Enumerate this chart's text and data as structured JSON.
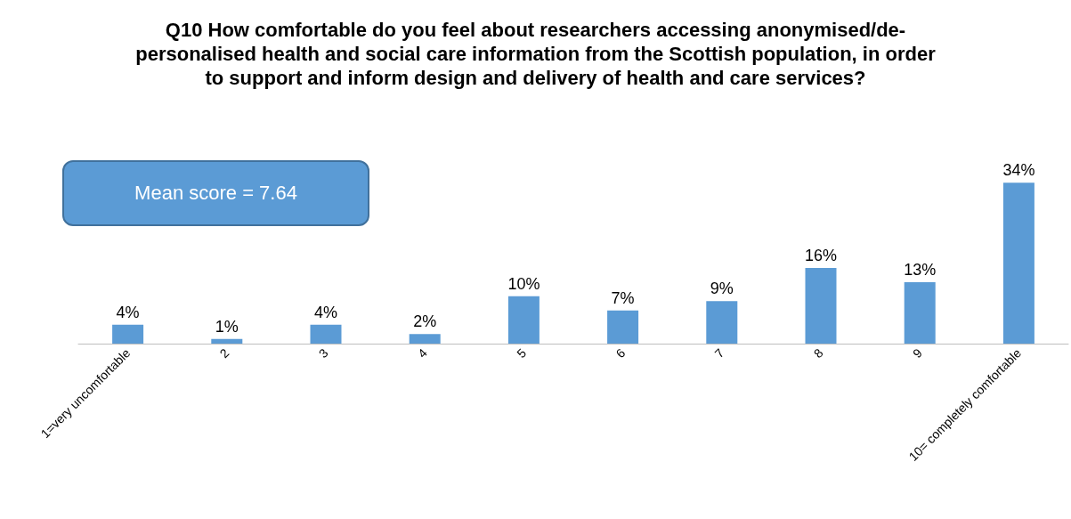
{
  "chart_data": {
    "type": "bar",
    "title": "Q10 How comfortable do you feel about researchers accessing anonymised/de-personalised health and social care information from the Scottish population, in order to support and inform design and delivery of health and care services?",
    "categories": [
      "1=very uncomfortable",
      "2",
      "3",
      "4",
      "5",
      "6",
      "7",
      "8",
      "9",
      "10= completely comfortable"
    ],
    "values": [
      4,
      1,
      4,
      2,
      10,
      7,
      9,
      16,
      13,
      34
    ],
    "value_labels": [
      "4%",
      "1%",
      "4%",
      "2%",
      "10%",
      "7%",
      "9%",
      "16%",
      "13%",
      "34%"
    ],
    "color": "#5b9bd5",
    "annotations": [
      "Mean score = 7.64"
    ]
  }
}
